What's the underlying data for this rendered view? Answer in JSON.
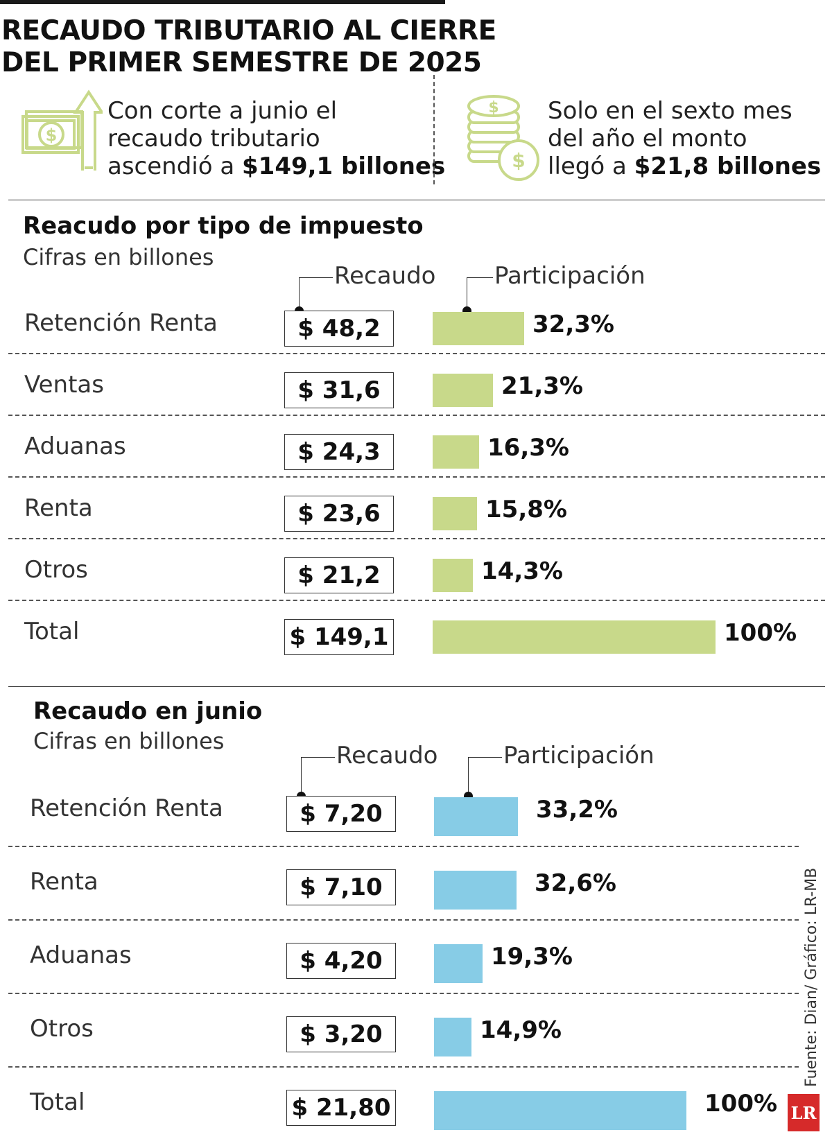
{
  "title": "RECAUDO TRIBUTARIO AL CIERRE\nDEL PRIMER SEMESTRE DE 2025",
  "kpis": [
    {
      "icon": "money-bill-up-arrow-icon",
      "pre": "Con corte a junio el\nrecaudo tributario\nascendió a ",
      "value": "$149,1 billones"
    },
    {
      "icon": "coin-stack-icon",
      "pre": "Solo en el sexto mes\ndel año el monto\nllegó a ",
      "value": "$21,8 billones"
    }
  ],
  "colors": {
    "semester_bar": "#c8d98a",
    "june_bar": "#87cce6",
    "icon": "#c8d98a"
  },
  "chart_data": [
    {
      "type": "bar",
      "title": "Reacudo por tipo de impuesto",
      "subtitle": "Cifras en billones",
      "column_headers": {
        "value": "Recaudo",
        "share": "Participación"
      },
      "categories": [
        "Retención Renta",
        "Ventas",
        "Aduanas",
        "Renta",
        "Otros",
        "Total"
      ],
      "values": [
        48.2,
        31.6,
        24.3,
        23.6,
        21.2,
        149.1
      ],
      "value_labels": [
        "$ 48,2",
        "$ 31,6",
        "$ 24,3",
        "$ 23,6",
        "$ 21,2",
        "$ 149,1"
      ],
      "shares": [
        32.3,
        21.3,
        16.3,
        15.8,
        14.3,
        100
      ],
      "share_labels": [
        "32,3%",
        "21,3%",
        "16,3%",
        "15,8%",
        "14,3%",
        "100%"
      ],
      "color": "#c8d98a"
    },
    {
      "type": "bar",
      "title": "Recaudo en junio",
      "subtitle": "Cifras en billones",
      "column_headers": {
        "value": "Recaudo",
        "share": "Participación"
      },
      "categories": [
        "Retención Renta",
        "Renta",
        "Aduanas",
        "Otros",
        "Total"
      ],
      "values": [
        7.2,
        7.1,
        4.2,
        3.2,
        21.8
      ],
      "value_labels": [
        "$ 7,20",
        "$ 7,10",
        "$ 4,20",
        "$ 3,20",
        "$ 21,80"
      ],
      "shares": [
        33.2,
        32.6,
        19.3,
        14.9,
        100
      ],
      "share_labels": [
        "33,2%",
        "32,6%",
        "19,3%",
        "14,9%",
        "100%"
      ],
      "color": "#87cce6"
    }
  ],
  "source": "Fuente: Dian/ Gráfico: LR-MB",
  "logo": "LR"
}
